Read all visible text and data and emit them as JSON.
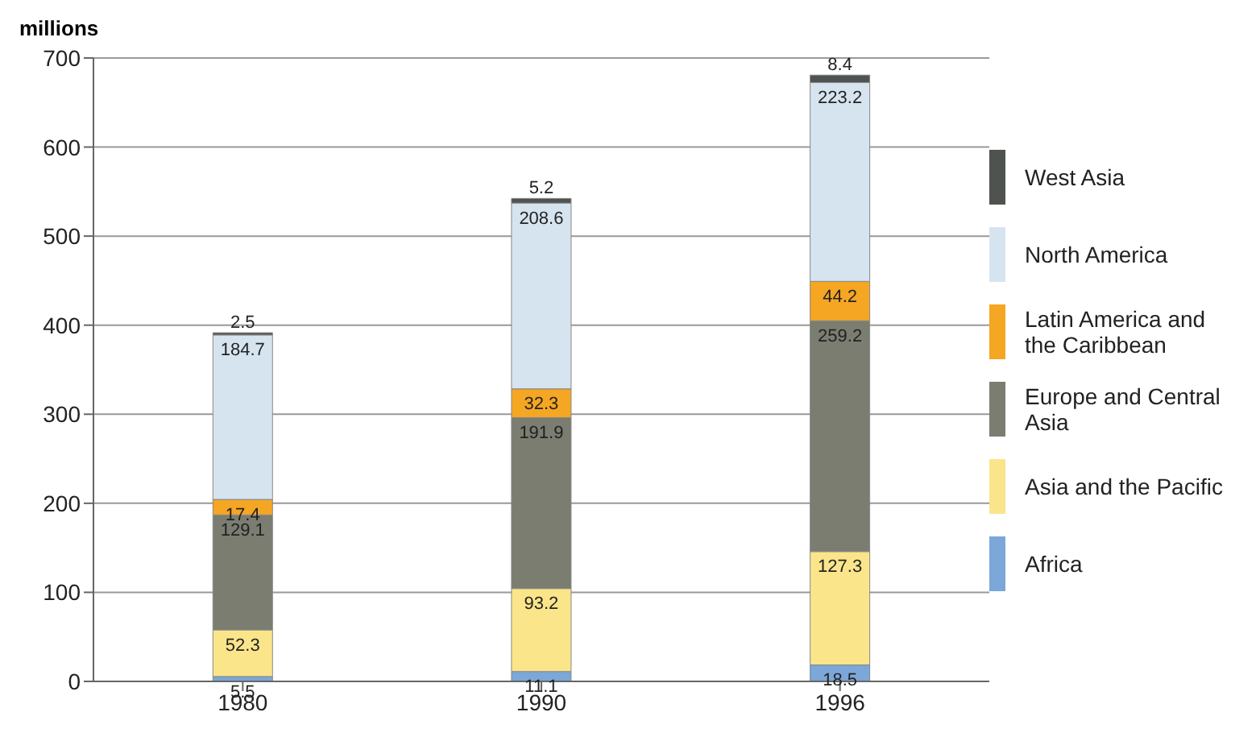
{
  "chart_data": {
    "type": "bar",
    "stacked": true,
    "ylabel": "millions",
    "categories": [
      "1980",
      "1990",
      "1996"
    ],
    "series": [
      {
        "name": "Africa",
        "color": "#7ba7d9",
        "values": [
          5.5,
          11.1,
          18.5
        ]
      },
      {
        "name": "Asia and the Pacific",
        "color": "#fbe58a",
        "values": [
          52.3,
          93.2,
          127.3
        ]
      },
      {
        "name": "Europe and Central Asia",
        "color": "#7a7d70",
        "values": [
          129.1,
          191.9,
          259.2
        ]
      },
      {
        "name": "Latin America and the Caribbean",
        "color": "#f5a623",
        "values": [
          17.4,
          32.3,
          44.2
        ]
      },
      {
        "name": "North America",
        "color": "#d6e4f0",
        "values": [
          184.7,
          208.6,
          223.2
        ]
      },
      {
        "name": "West Asia",
        "color": "#4f534f",
        "values": [
          2.5,
          5.2,
          8.4
        ]
      }
    ],
    "ylim": [
      0,
      700
    ],
    "yticks": [
      0,
      100,
      200,
      300,
      400,
      500,
      600,
      700
    ],
    "grid": "y",
    "legend": "right",
    "data_labels": true
  }
}
